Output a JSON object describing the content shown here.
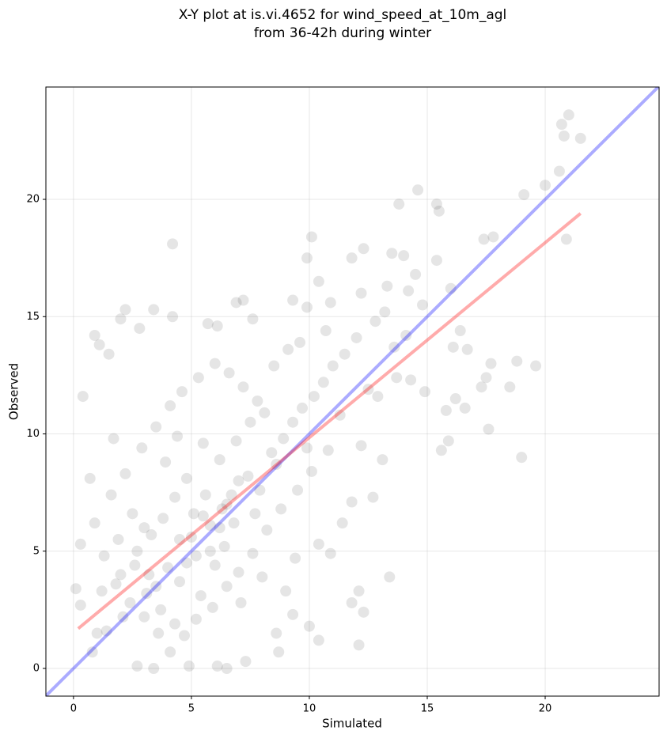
{
  "chart_data": {
    "type": "scatter",
    "title": "X-Y plot at is.vi.4652 for wind_speed_at_10m_agl",
    "subtitle": "from 36-42h during winter",
    "x_label": "Simulated",
    "y_label": "Observed",
    "xlim": [
      -1.17,
      24.83
    ],
    "ylim": [
      -1.18,
      24.79
    ],
    "xticks": [
      0,
      5,
      10,
      15,
      20
    ],
    "yticks": [
      0,
      5,
      10,
      15,
      20
    ],
    "grid": true,
    "series": [
      {
        "color": "#000000",
        "x": [
          4.2,
          10.1,
          12.3,
          13.5,
          14.6,
          15.4,
          15.5,
          13.8,
          20.7,
          21,
          20.8,
          21.5,
          20.6,
          20,
          19.1,
          17.8,
          17.4,
          20.9,
          19.6,
          19,
          18.8,
          18.5,
          17.6,
          17.3,
          16.6,
          15.6,
          15.9,
          13.4,
          12.3,
          12.1,
          12.1,
          11.8,
          10.4,
          10,
          0.3,
          0.4,
          0.9,
          1.1,
          1.5,
          2,
          2.2,
          2.8,
          3.4,
          4.2,
          5.7,
          6.1,
          6.9,
          7.2,
          7.6,
          9.3,
          9.9,
          10.4,
          10.9,
          9.9,
          11.8,
          12.2,
          13.3,
          14,
          15.4,
          16,
          16.4,
          16.1,
          16.7,
          17.5,
          17.7,
          16.2,
          15.8,
          14.9,
          14.3,
          12.5,
          12.9,
          13.6,
          13.1,
          12.7,
          12.2,
          11.8,
          11.4,
          10.9,
          10.4,
          9.4,
          9,
          9.3,
          8.6,
          8.7,
          7.3,
          6.5,
          6.1,
          4.9,
          4.3,
          2.7,
          3.4,
          0.8,
          0.1,
          0.3,
          1.4,
          1.2,
          1.9,
          2.6,
          3.1,
          3.7,
          4.5,
          5.2,
          5.8,
          6.3,
          6.7,
          7.4,
          7.9,
          8.4,
          8.9,
          9.3,
          9.7,
          10.2,
          10.6,
          11,
          11.5,
          12,
          12.8,
          13.2,
          14.2,
          14.5,
          14.8,
          14.1,
          13.7,
          11.3,
          10.8,
          10.1,
          9.5,
          8.8,
          8.2,
          7.6,
          7,
          6.5,
          5.9,
          5.2,
          4.7,
          4.1,
          3.6,
          3,
          2.4,
          1.8,
          1.3,
          0.9,
          1.6,
          2.2,
          2.9,
          3.5,
          4.1,
          4.6,
          5.3,
          6,
          6.6,
          7.2,
          7.8,
          8.5,
          9.1,
          9.6,
          10.7,
          5.5,
          6.2,
          4.8,
          4.3,
          3.8,
          3.3,
          2.7,
          5.6,
          6.9,
          7.5,
          8.1,
          8.6,
          9.9,
          6.4,
          5,
          4,
          3.2,
          2.1,
          1,
          5.4,
          6.8,
          7.1,
          8,
          2.5,
          1.7,
          0.7,
          3.9,
          4.4,
          5.1,
          6,
          7.7,
          4.5,
          5.5,
          6.5,
          3.5,
          4.8,
          5.8,
          6.2,
          3.0,
          2.0,
          7.0
        ],
        "values": [
          18.1,
          18.4,
          17.9,
          17.7,
          20.4,
          19.8,
          19.5,
          19.8,
          23.2,
          23.6,
          22.7,
          22.6,
          21.2,
          20.6,
          20.2,
          18.4,
          18.3,
          18.3,
          12.9,
          9,
          13.1,
          12,
          10.2,
          12,
          11.1,
          9.3,
          9.7,
          3.9,
          2.4,
          1,
          3.3,
          2.8,
          1.2,
          1.8,
          5.3,
          11.6,
          14.2,
          13.8,
          13.4,
          14.9,
          15.3,
          14.5,
          15.3,
          15,
          14.7,
          14.6,
          15.6,
          15.7,
          14.9,
          15.7,
          15.4,
          16.5,
          15.6,
          17.5,
          17.5,
          16,
          16.3,
          17.6,
          17.4,
          16.2,
          14.4,
          13.7,
          13.6,
          12.4,
          13,
          11.5,
          11,
          11.8,
          12.3,
          11.9,
          11.6,
          13.7,
          8.9,
          7.3,
          9.5,
          7.1,
          6.2,
          4.9,
          5.3,
          4.7,
          3.3,
          2.3,
          1.5,
          0.7,
          0.3,
          0,
          0.1,
          0.1,
          1.9,
          0.1,
          0,
          0.7,
          3.4,
          2.7,
          1.6,
          3.3,
          5.5,
          4.4,
          3.2,
          2.5,
          3.7,
          4.8,
          6.1,
          6.8,
          7.4,
          8.2,
          7.6,
          9.2,
          9.8,
          10.5,
          11.1,
          11.6,
          12.2,
          12.9,
          13.4,
          14.1,
          14.8,
          15.2,
          16.1,
          16.8,
          15.5,
          14.2,
          12.4,
          10.8,
          9.3,
          8.4,
          7.6,
          6.8,
          5.9,
          4.9,
          4.1,
          3.5,
          2.6,
          2.1,
          1.4,
          0.7,
          1.5,
          2.2,
          2.8,
          3.6,
          4.8,
          6.2,
          7.4,
          8.3,
          9.4,
          10.3,
          11.2,
          11.8,
          12.4,
          13,
          12.6,
          12,
          11.4,
          12.9,
          13.6,
          13.9,
          14.4,
          9.6,
          8.9,
          8.1,
          7.3,
          6.4,
          5.7,
          5,
          7.4,
          9.7,
          10.5,
          10.9,
          8.7,
          9.4,
          5.2,
          5.6,
          4.3,
          4,
          2.2,
          1.5,
          3.1,
          6.2,
          2.8,
          3.9,
          6.6,
          9.8,
          8.1,
          8.8,
          9.9,
          6.6,
          4.4,
          6.6,
          5.5,
          6.5,
          7.0,
          3.5,
          4.5,
          5.0,
          6.0,
          6.0,
          4.0,
          8.0
        ]
      }
    ],
    "lines": [
      {
        "color": "#0000ff",
        "x": [
          -1.2,
          24.9
        ],
        "values": [
          -1.2,
          24.9
        ]
      },
      {
        "color": "#ff0000",
        "x": [
          0.2,
          21.5
        ],
        "values": [
          1.7,
          19.4
        ]
      }
    ]
  }
}
